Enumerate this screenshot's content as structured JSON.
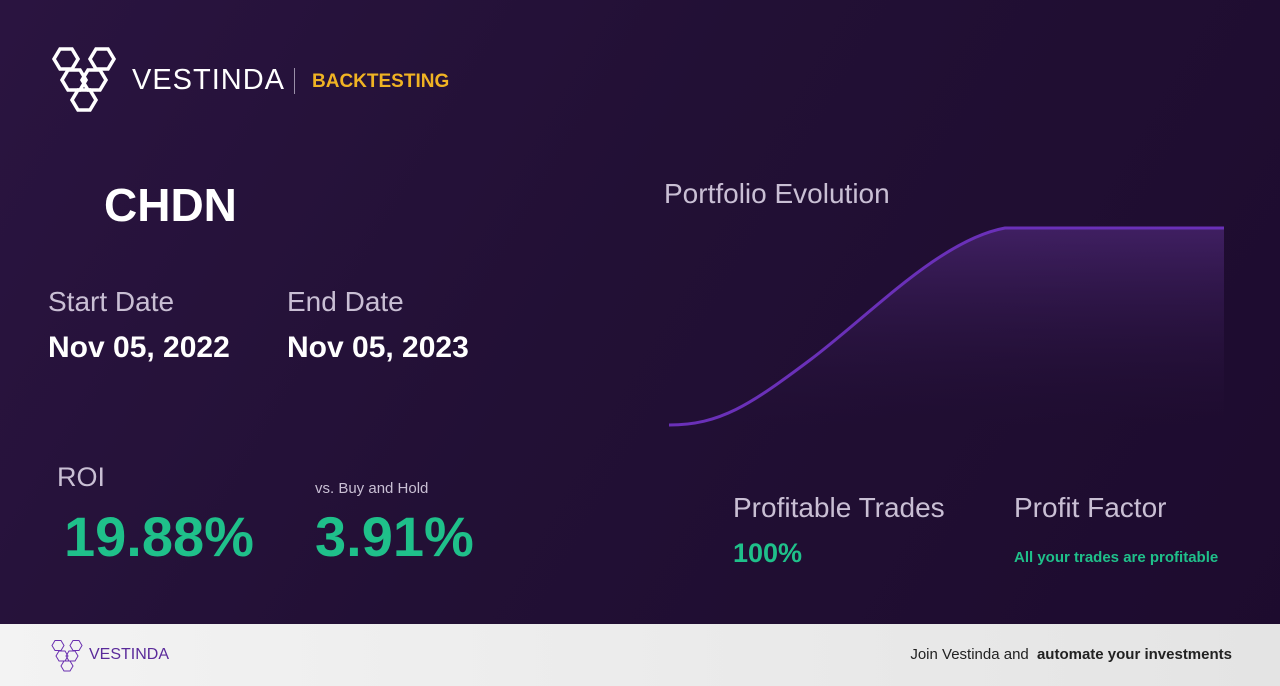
{
  "header": {
    "brand": "VESTINDA",
    "section": "BACKTESTING"
  },
  "ticker": "CHDN",
  "dates": {
    "start_label": "Start Date",
    "start": "Nov 05, 2022",
    "end_label": "End Date",
    "end": "Nov 05, 2023"
  },
  "chart": {
    "title": "Portfolio Evolution"
  },
  "metrics": {
    "roi_label": "ROI",
    "roi": "19.88%",
    "bh_label": "vs. Buy and Hold",
    "bh": "3.91%",
    "trades_label": "Profitable Trades",
    "trades": "100%",
    "pf_label": "Profit Factor",
    "pf": "All your trades are profitable"
  },
  "footer": {
    "brand": "VESTINDA",
    "cta_plain": "Join Vestinda and",
    "cta_bold": "automate your investments"
  }
}
